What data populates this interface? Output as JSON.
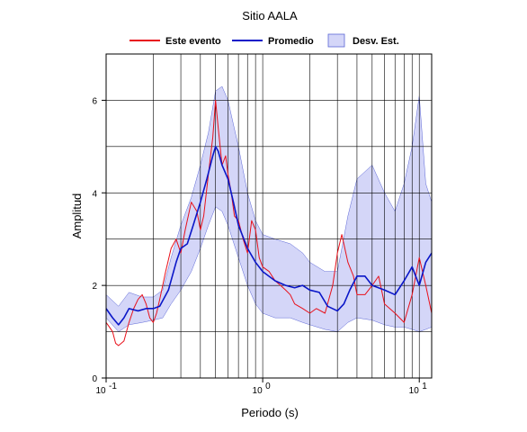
{
  "colors": {
    "event": "#e8101a",
    "average": "#0a16c8",
    "std_band": "#d4d6f8",
    "std_band_stroke": "#5b66d6",
    "grid": "#000000"
  },
  "chart_data": {
    "type": "line",
    "title": "Sitio AALA",
    "xlabel": "Periodo (s)",
    "ylabel": "Amplitud",
    "x_scale": "log",
    "xlim": [
      0.1,
      12
    ],
    "ylim": [
      0,
      7
    ],
    "grid": true,
    "legend_position": "top",
    "x_ticks": [
      {
        "value": 0.1,
        "base": "10",
        "exp": "-1"
      },
      {
        "value": 1,
        "base": "10",
        "exp": "0"
      },
      {
        "value": 10,
        "base": "10",
        "exp": "1"
      }
    ],
    "y_ticks": [
      0,
      2,
      4,
      6
    ],
    "legend": [
      "Este evento",
      "Promedio",
      "Desv. Est."
    ],
    "series": [
      {
        "name": "Este evento",
        "x": [
          0.1,
          0.105,
          0.11,
          0.115,
          0.12,
          0.13,
          0.14,
          0.15,
          0.16,
          0.17,
          0.18,
          0.19,
          0.2,
          0.21,
          0.22,
          0.24,
          0.26,
          0.28,
          0.3,
          0.32,
          0.35,
          0.38,
          0.4,
          0.42,
          0.45,
          0.48,
          0.5,
          0.52,
          0.55,
          0.58,
          0.6,
          0.63,
          0.66,
          0.7,
          0.75,
          0.8,
          0.85,
          0.9,
          0.95,
          1.0,
          1.1,
          1.2,
          1.3,
          1.4,
          1.5,
          1.6,
          1.8,
          2.0,
          2.2,
          2.5,
          2.8,
          3.0,
          3.2,
          3.5,
          3.8,
          4.0,
          4.5,
          5.0,
          5.5,
          6.0,
          7.0,
          8.0,
          9.0,
          10.0,
          11.0,
          12.0
        ],
        "y": [
          1.2,
          1.1,
          1.0,
          0.75,
          0.7,
          0.8,
          1.2,
          1.5,
          1.7,
          1.8,
          1.6,
          1.3,
          1.2,
          1.4,
          1.7,
          2.3,
          2.8,
          3.0,
          2.7,
          3.2,
          3.8,
          3.6,
          3.2,
          3.5,
          4.4,
          5.2,
          6.0,
          5.4,
          4.6,
          4.8,
          4.4,
          4.0,
          3.5,
          3.4,
          3.0,
          2.7,
          3.4,
          3.2,
          2.6,
          2.4,
          2.3,
          2.1,
          2.0,
          1.9,
          1.8,
          1.6,
          1.5,
          1.4,
          1.5,
          1.4,
          2.0,
          2.7,
          3.1,
          2.5,
          2.2,
          1.8,
          1.8,
          2.0,
          2.2,
          1.6,
          1.4,
          1.2,
          1.8,
          2.6,
          2.0,
          1.4
        ]
      },
      {
        "name": "Promedio",
        "x": [
          0.1,
          0.11,
          0.12,
          0.13,
          0.14,
          0.16,
          0.18,
          0.2,
          0.22,
          0.25,
          0.28,
          0.3,
          0.33,
          0.36,
          0.4,
          0.44,
          0.48,
          0.5,
          0.52,
          0.55,
          0.6,
          0.65,
          0.7,
          0.8,
          0.9,
          1.0,
          1.2,
          1.4,
          1.6,
          1.8,
          2.0,
          2.3,
          2.6,
          3.0,
          3.3,
          3.6,
          4.0,
          4.5,
          5.0,
          6.0,
          7.0,
          8.0,
          9.0,
          10.0,
          11.0,
          12.0
        ],
        "y": [
          1.5,
          1.3,
          1.15,
          1.3,
          1.5,
          1.45,
          1.5,
          1.5,
          1.55,
          1.9,
          2.5,
          2.8,
          2.9,
          3.3,
          3.8,
          4.3,
          4.8,
          5.0,
          4.9,
          4.6,
          4.3,
          3.8,
          3.3,
          2.8,
          2.5,
          2.3,
          2.1,
          2.0,
          1.95,
          2.0,
          1.9,
          1.85,
          1.55,
          1.45,
          1.6,
          1.9,
          2.2,
          2.2,
          2.0,
          1.9,
          1.8,
          2.1,
          2.4,
          2.0,
          2.5,
          2.7
        ]
      },
      {
        "name": "Desv. Est.",
        "x": [
          0.1,
          0.12,
          0.14,
          0.17,
          0.2,
          0.23,
          0.26,
          0.3,
          0.35,
          0.4,
          0.45,
          0.5,
          0.55,
          0.6,
          0.7,
          0.8,
          0.9,
          1.0,
          1.2,
          1.5,
          1.8,
          2.0,
          2.5,
          3.0,
          3.5,
          4.0,
          5.0,
          6.0,
          7.0,
          8.0,
          9.0,
          10.0,
          11.0,
          12.0
        ],
        "lower": [
          1.3,
          1.0,
          1.15,
          1.2,
          1.25,
          1.3,
          1.6,
          1.9,
          2.3,
          2.8,
          3.3,
          3.7,
          3.6,
          3.3,
          2.6,
          2.0,
          1.6,
          1.4,
          1.3,
          1.3,
          1.2,
          1.15,
          1.05,
          1.0,
          1.2,
          1.3,
          1.25,
          1.15,
          1.1,
          1.1,
          1.05,
          1.0,
          1.05,
          1.1
        ],
        "upper": [
          1.8,
          1.55,
          1.85,
          1.75,
          1.75,
          1.9,
          2.6,
          3.3,
          3.9,
          4.6,
          5.3,
          6.2,
          6.3,
          6.0,
          5.0,
          4.0,
          3.4,
          3.1,
          3.0,
          2.9,
          2.7,
          2.5,
          2.3,
          2.3,
          3.5,
          4.3,
          4.6,
          4.0,
          3.6,
          4.2,
          5.0,
          6.1,
          4.2,
          3.8
        ]
      }
    ]
  }
}
